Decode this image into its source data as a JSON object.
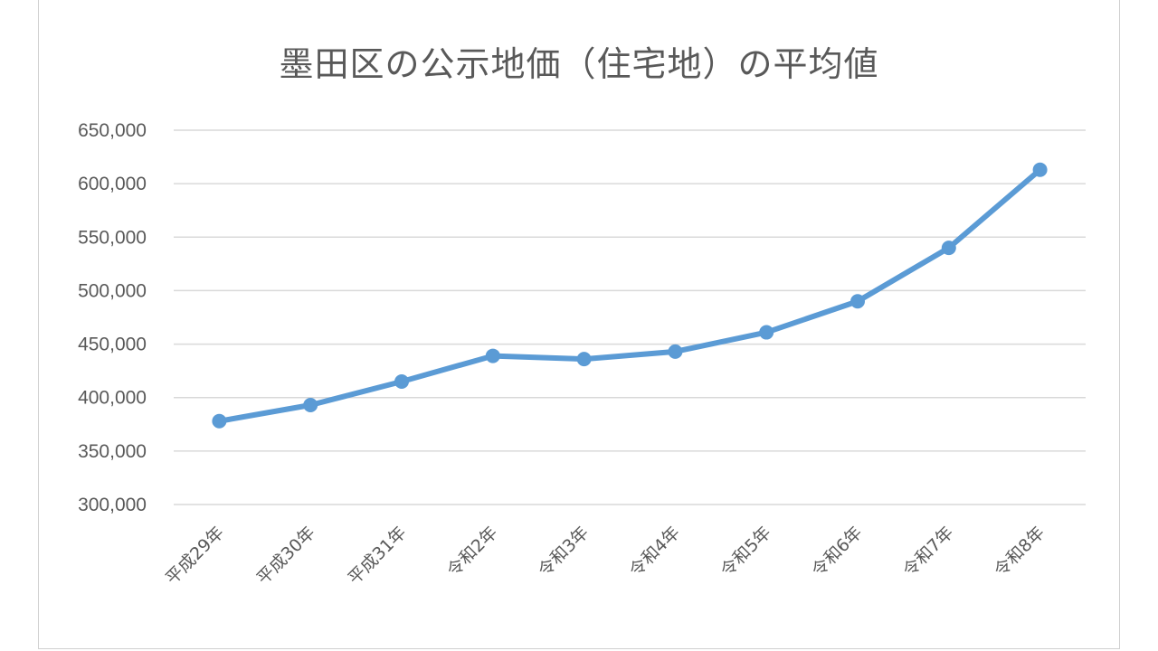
{
  "chart_data": {
    "type": "line",
    "title": "墨田区の公示地価（住宅地）の平均値",
    "categories": [
      "平成29年",
      "平成30年",
      "平成31年",
      "令和2年",
      "令和3年",
      "令和4年",
      "令和5年",
      "令和6年",
      "令和7年",
      "令和8年"
    ],
    "series": [
      {
        "values": [
          378000,
          393000,
          415000,
          439000,
          436000,
          443000,
          461000,
          490000,
          540000,
          613000
        ]
      }
    ],
    "ylim": [
      300000,
      650000
    ],
    "yticks": [
      "300,000",
      "350,000",
      "400,000",
      "450,000",
      "500,000",
      "550,000",
      "600,000",
      "650,000"
    ],
    "ytick_values": [
      300000,
      350000,
      400000,
      450000,
      500000,
      550000,
      600000,
      650000
    ],
    "grid": true,
    "line_color": "#5b9bd5",
    "grid_color": "#d9d9d9",
    "text_color": "#595959"
  }
}
